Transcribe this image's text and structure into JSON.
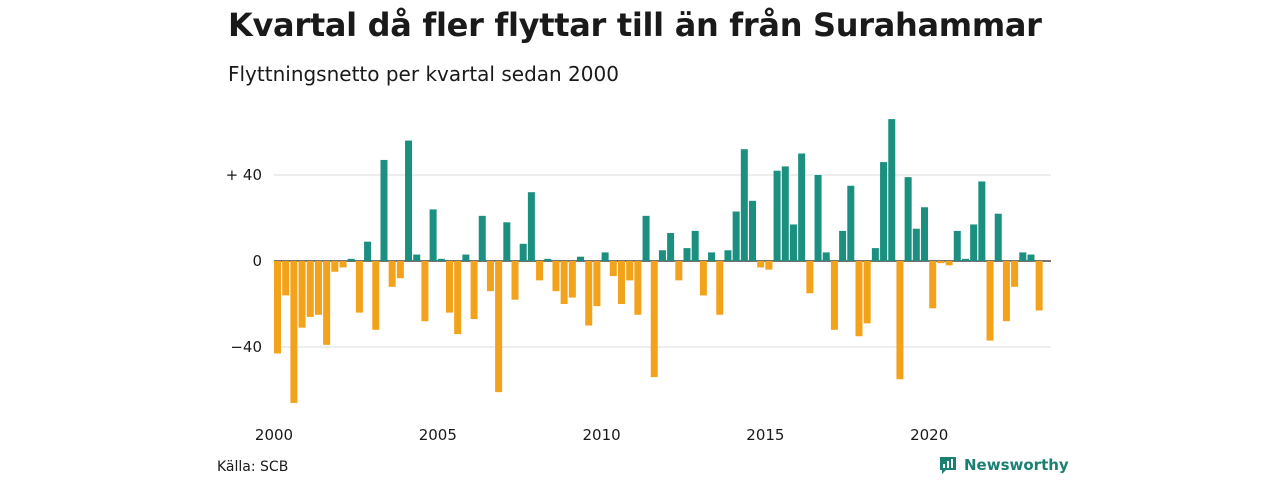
{
  "title": "Kvartal då fler flyttar till än från Surahammar",
  "subtitle": "Flyttningsnetto per kvartal sedan 2000",
  "source": "Källa: SCB",
  "brand": "Newsworthy",
  "brand_icon": "newsworthy-logo-icon",
  "colors": {
    "positive": "#1b8f80",
    "negative": "#f2a21b",
    "grid": "#dddddd",
    "zero": "#222222",
    "brand": "#1b7f72"
  },
  "chart_data": {
    "type": "bar",
    "title": "Kvartal då fler flyttar till än från Surahammar",
    "subtitle": "Flyttningsnetto per kvartal sedan 2000",
    "xlabel": "",
    "ylabel": "",
    "x_tick_labels": [
      "2000",
      "2005",
      "2010",
      "2015",
      "2020"
    ],
    "y_ticks": [
      {
        "value": 40,
        "label": "+ 40"
      },
      {
        "value": 0,
        "label": "0"
      },
      {
        "value": -40,
        "label": "−40"
      }
    ],
    "ylim": [
      -66,
      67
    ],
    "grid": true,
    "start_year": 2000,
    "quarters_per_year": 4,
    "values": [
      -43,
      -16,
      -66,
      -31,
      -26,
      -25,
      -39,
      -5,
      -3,
      1,
      -24,
      9,
      -32,
      47,
      -12,
      -8,
      56,
      3,
      -28,
      24,
      1,
      -24,
      -34,
      3,
      -27,
      21,
      -14,
      -61,
      18,
      -18,
      8,
      32,
      -9,
      1,
      -14,
      -20,
      -17,
      2,
      -30,
      -21,
      4,
      -7,
      -20,
      -9,
      -25,
      21,
      -54,
      5,
      13,
      -9,
      6,
      14,
      -16,
      4,
      -25,
      5,
      23,
      52,
      28,
      -3,
      -4,
      42,
      44,
      17,
      50,
      -15,
      40,
      4,
      -32,
      14,
      35,
      -35,
      -29,
      6,
      46,
      66,
      -55,
      39,
      15,
      25,
      -22,
      -1,
      -2,
      14,
      1,
      17,
      37,
      -37,
      22,
      -28,
      -12,
      4,
      3,
      -23
    ]
  }
}
